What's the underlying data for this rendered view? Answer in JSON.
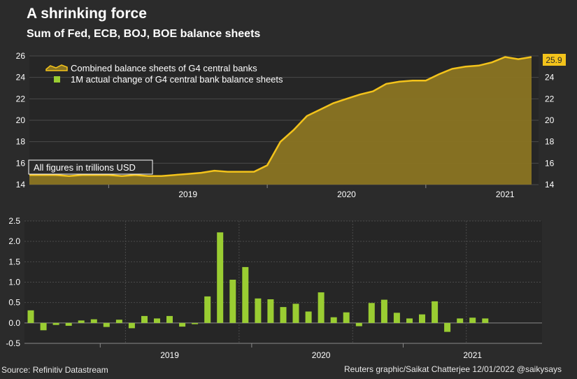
{
  "title": "A shrinking force",
  "subtitle": "Sum of Fed, ECB, BOJ, BOE balance sheets",
  "note": "All figures in trillions USD",
  "source": "Source: Refinitiv Datastream",
  "credit": "Reuters graphic/Saikat Chatterjee 12/01/2022 @saikysays",
  "colors": {
    "area_fill": "#8a7422",
    "line": "#f3c31b",
    "bar": "#9acd32",
    "background": "#2b2b2b"
  },
  "chart_data": [
    {
      "type": "area",
      "title": "Sum of Fed, ECB, BOJ, BOE balance sheets",
      "x_ticks": [
        "2019",
        "2020",
        "2021"
      ],
      "ylim": [
        14,
        26
      ],
      "y_ticks": [
        "14",
        "16",
        "18",
        "20",
        "22",
        "24",
        "26"
      ],
      "last_value_label": "25.9",
      "series": [
        {
          "name": "Combined balance sheets of G4 central banks",
          "x": [
            "2018-07",
            "2018-08",
            "2018-09",
            "2018-10",
            "2018-11",
            "2018-12",
            "2019-01",
            "2019-02",
            "2019-03",
            "2019-04",
            "2019-05",
            "2019-06",
            "2019-07",
            "2019-08",
            "2019-09",
            "2019-10",
            "2019-11",
            "2019-12",
            "2020-01",
            "2020-02",
            "2020-03",
            "2020-04",
            "2020-05",
            "2020-06",
            "2020-07",
            "2020-08",
            "2020-09",
            "2020-10",
            "2020-11",
            "2020-12",
            "2021-01",
            "2021-02",
            "2021-03",
            "2021-04",
            "2021-05",
            "2021-06",
            "2021-07",
            "2021-08",
            "2021-09"
          ],
          "values": [
            14.9,
            14.9,
            14.9,
            14.8,
            14.9,
            14.9,
            14.9,
            14.8,
            14.9,
            14.8,
            14.8,
            14.9,
            15.0,
            15.1,
            15.3,
            15.2,
            15.2,
            15.2,
            15.8,
            18.0,
            19.1,
            20.4,
            21.0,
            21.6,
            22.0,
            22.4,
            22.7,
            23.4,
            23.6,
            23.7,
            23.7,
            24.3,
            24.8,
            25.0,
            25.1,
            25.4,
            25.9,
            25.7,
            25.9
          ]
        },
        {
          "name": "1M actual change of G4 central bank balance sheets",
          "type": "bar"
        }
      ]
    },
    {
      "type": "bar",
      "x_ticks": [
        "2019",
        "2020",
        "2021"
      ],
      "ylim": [
        -0.5,
        2.5
      ],
      "y_ticks": [
        "-0.5",
        "0.0",
        "0.5",
        "1.0",
        "1.5",
        "2.0",
        "2.5"
      ],
      "series": [
        {
          "name": "1M actual change of G4 central bank balance sheets",
          "x": [
            "2018-07",
            "2018-08",
            "2018-09",
            "2018-10",
            "2018-11",
            "2018-12",
            "2019-01",
            "2019-02",
            "2019-03",
            "2019-04",
            "2019-05",
            "2019-06",
            "2019-07",
            "2019-08",
            "2019-09",
            "2019-10",
            "2019-11",
            "2019-12",
            "2020-01",
            "2020-02",
            "2020-03",
            "2020-04",
            "2020-05",
            "2020-06",
            "2020-07",
            "2020-08",
            "2020-09",
            "2020-10",
            "2020-11",
            "2020-12",
            "2021-01",
            "2021-02",
            "2021-03",
            "2021-04",
            "2021-05",
            "2021-06",
            "2021-07",
            "2021-08",
            "2021-09",
            "2021-10",
            "2021-11"
          ],
          "values": [
            0.31,
            -0.18,
            -0.05,
            -0.07,
            0.06,
            0.09,
            -0.1,
            0.08,
            -0.13,
            0.17,
            0.11,
            0.17,
            -0.09,
            -0.03,
            0.65,
            2.22,
            1.06,
            1.37,
            0.6,
            0.58,
            0.39,
            0.47,
            0.28,
            0.75,
            0.14,
            0.26,
            -0.08,
            0.49,
            0.57,
            0.25,
            0.11,
            0.21,
            0.53,
            -0.22,
            0.11,
            0.13,
            0.11,
            0.0,
            0.0,
            0.0,
            0.0
          ]
        }
      ]
    }
  ]
}
